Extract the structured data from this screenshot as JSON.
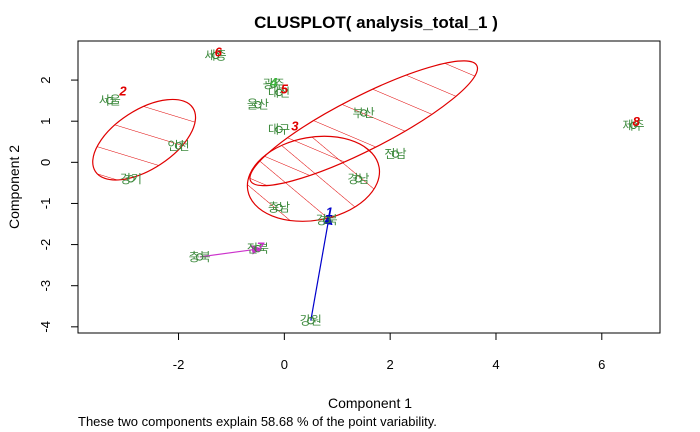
{
  "chart_data": {
    "type": "scatter",
    "title": "CLUSPLOT( analysis_total_1 )",
    "xlabel": "Component 1",
    "ylabel": "Component 2",
    "footnote": "These two components explain 58.68 % of the point variability.",
    "xlim": [
      -3.9,
      7.1
    ],
    "ylim": [
      -4.15,
      2.95
    ],
    "x_ticks": [
      -2,
      0,
      2,
      4,
      6
    ],
    "y_ticks": [
      -4,
      -3,
      -2,
      -1,
      0,
      1,
      2
    ],
    "x_tick_labels": [
      "-2",
      "0",
      "2",
      "4",
      "6"
    ],
    "y_tick_labels": [
      "-4",
      "-3",
      "-2",
      "-1",
      "0",
      "1",
      "2"
    ],
    "points": [
      {
        "label": "서울",
        "x": -3.3,
        "y": 1.5
      },
      {
        "label": "인천",
        "x": -2.0,
        "y": 0.4
      },
      {
        "label": "경기",
        "x": -2.9,
        "y": -0.4
      },
      {
        "label": "세종",
        "x": -1.3,
        "y": 2.6
      },
      {
        "label": "광주",
        "x": -0.2,
        "y": 1.9
      },
      {
        "label": "대전",
        "x": -0.1,
        "y": 1.7
      },
      {
        "label": "울산",
        "x": -0.5,
        "y": 1.4
      },
      {
        "label": "부산",
        "x": 1.5,
        "y": 1.2
      },
      {
        "label": "대구",
        "x": -0.1,
        "y": 0.8
      },
      {
        "label": "전남",
        "x": 2.1,
        "y": 0.2
      },
      {
        "label": "경남",
        "x": 1.4,
        "y": -0.4
      },
      {
        "label": "충남",
        "x": -0.1,
        "y": -1.1
      },
      {
        "label": "경북",
        "x": 0.8,
        "y": -1.4
      },
      {
        "label": "강원",
        "x": 0.5,
        "y": -3.85
      },
      {
        "label": "충북",
        "x": -1.6,
        "y": -2.3
      },
      {
        "label": "전북",
        "x": -0.5,
        "y": -2.1
      },
      {
        "label": "제주",
        "x": 6.6,
        "y": 0.9
      }
    ],
    "clusters": [
      {
        "id": "1",
        "x": 0.85,
        "y": -1.2,
        "color": "#0000cc"
      },
      {
        "id": "2",
        "x": -3.05,
        "y": 1.75,
        "color": "#e00000"
      },
      {
        "id": "3",
        "x": 0.2,
        "y": 0.9,
        "color": "#e00000"
      },
      {
        "id": "4",
        "x": -0.2,
        "y": 1.95,
        "color": "#3cb43c"
      },
      {
        "id": "5",
        "x": 0.0,
        "y": 1.8,
        "color": "#e00000"
      },
      {
        "id": "6",
        "x": -1.25,
        "y": 2.7,
        "color": "#e00000"
      },
      {
        "id": "7",
        "x": -0.45,
        "y": -2.05,
        "color": "#cc33cc"
      },
      {
        "id": "8",
        "x": 6.65,
        "y": 1.0,
        "color": "#e00000"
      }
    ],
    "ellipses": [
      {
        "cx": -2.65,
        "cy": 0.55,
        "rx": 1.1,
        "ry": 0.72,
        "angle": -33
      },
      {
        "cx": 1.5,
        "cy": 0.95,
        "rx": 2.4,
        "ry": 0.65,
        "angle": -27
      },
      {
        "cx": 0.55,
        "cy": -0.4,
        "rx": 1.26,
        "ry": 1.01,
        "angle": -10
      }
    ],
    "segments": [
      {
        "from": [
          0.5,
          -3.85
        ],
        "to": [
          0.85,
          -1.3
        ],
        "color": "#0000cc",
        "arrow": true
      },
      {
        "from": [
          -1.6,
          -2.3
        ],
        "to": [
          -0.45,
          -2.1
        ],
        "color": "#cc33cc",
        "arrow": true
      }
    ]
  }
}
